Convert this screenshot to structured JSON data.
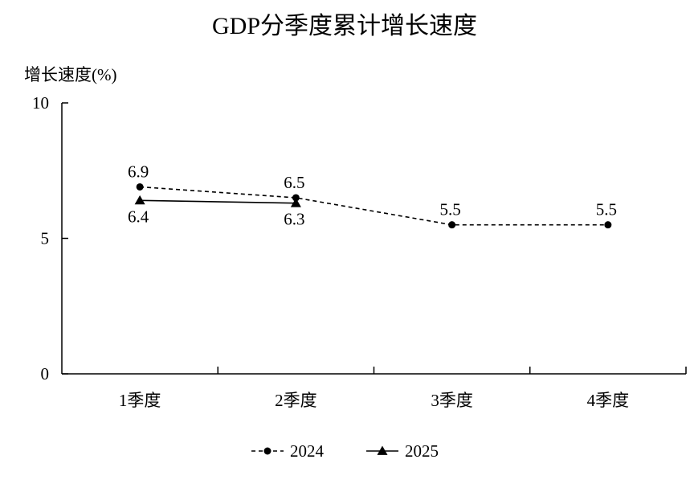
{
  "chart_data": {
    "type": "line",
    "title": "GDP分季度累计增长速度",
    "ylabel": "增长速度(%)",
    "xlabel": "",
    "categories": [
      "1季度",
      "2季度",
      "3季度",
      "4季度"
    ],
    "ylim": [
      0,
      10
    ],
    "yticks": [
      0,
      5,
      10
    ],
    "grid": false,
    "legend_position": "bottom",
    "series": [
      {
        "name": "2024",
        "values": [
          6.9,
          6.5,
          5.5,
          5.5
        ],
        "line_style": "dashed",
        "marker": "circle",
        "color": "#000000"
      },
      {
        "name": "2025",
        "values": [
          6.4,
          6.3,
          null,
          null
        ],
        "line_style": "solid",
        "marker": "triangle",
        "color": "#000000"
      }
    ]
  }
}
